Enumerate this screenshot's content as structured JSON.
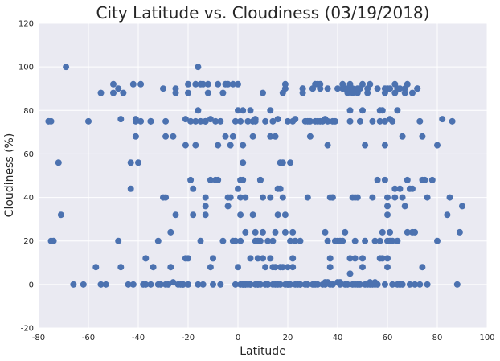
{
  "chart_data": {
    "type": "scatter",
    "title": "City Latitude vs. Cloudiness (03/19/2018)",
    "xlabel": "Latitude",
    "ylabel": "Cloudiness (%)",
    "xlim": [
      -80,
      100
    ],
    "ylim": [
      -20,
      120
    ],
    "xticks": [
      "-80",
      "-60",
      "-40",
      "-20",
      "0",
      "20",
      "40",
      "60",
      "80",
      "100"
    ],
    "yticks": [
      "-20",
      "0",
      "20",
      "40",
      "60",
      "80",
      "100",
      "120"
    ],
    "grid": true,
    "legend": "none",
    "colors": {
      "background": "#eaeaf2",
      "grid": "#ffffff",
      "point": "#4c72b0"
    },
    "points": [
      [
        -76,
        75
      ],
      [
        -75,
        75
      ],
      [
        -75,
        20
      ],
      [
        -74,
        20
      ],
      [
        -72,
        56
      ],
      [
        -71,
        32
      ],
      [
        -69,
        100
      ],
      [
        -66,
        0
      ],
      [
        -62,
        0
      ],
      [
        -60,
        75
      ],
      [
        -57,
        8
      ],
      [
        -55,
        0
      ],
      [
        -55,
        88
      ],
      [
        -53,
        0
      ],
      [
        -50,
        88
      ],
      [
        -50,
        92
      ],
      [
        -48,
        20
      ],
      [
        -48,
        90
      ],
      [
        -47,
        8
      ],
      [
        -47,
        76
      ],
      [
        -46,
        88
      ],
      [
        -44,
        0
      ],
      [
        -43,
        56
      ],
      [
        -43,
        44
      ],
      [
        -42,
        92
      ],
      [
        -42,
        0
      ],
      [
        -41,
        68
      ],
      [
        -41,
        75
      ],
      [
        -41,
        76
      ],
      [
        -40,
        56
      ],
      [
        -39,
        92
      ],
      [
        -39,
        75
      ],
      [
        -38,
        0
      ],
      [
        -37,
        12
      ],
      [
        -37,
        0
      ],
      [
        -35,
        75
      ],
      [
        -35,
        75
      ],
      [
        -35,
        0
      ],
      [
        -34,
        8
      ],
      [
        -32,
        20
      ],
      [
        -32,
        0
      ],
      [
        -31,
        0
      ],
      [
        -30,
        40
      ],
      [
        -30,
        90
      ],
      [
        -29,
        40
      ],
      [
        -29,
        0
      ],
      [
        -29,
        75
      ],
      [
        -29,
        68
      ],
      [
        -28,
        0
      ],
      [
        -27,
        8
      ],
      [
        -27,
        24
      ],
      [
        -26,
        1
      ],
      [
        -26,
        68
      ],
      [
        -25,
        90
      ],
      [
        -25,
        88
      ],
      [
        -25,
        32
      ],
      [
        -24,
        0
      ],
      [
        -23,
        0
      ],
      [
        -22,
        0
      ],
      [
        -22,
        0
      ],
      [
        -21,
        76
      ],
      [
        -21,
        64
      ],
      [
        -21,
        12
      ],
      [
        -20,
        0
      ],
      [
        -20,
        12
      ],
      [
        -20,
        88
      ],
      [
        -20,
        92
      ],
      [
        -19,
        48
      ],
      [
        -19,
        75
      ],
      [
        -18,
        44
      ],
      [
        -18,
        32
      ],
      [
        -17,
        64
      ],
      [
        -17,
        75
      ],
      [
        -17,
        92
      ],
      [
        -16,
        100
      ],
      [
        -16,
        80
      ],
      [
        -16,
        0
      ],
      [
        -15,
        75
      ],
      [
        -15,
        20
      ],
      [
        -15,
        92
      ],
      [
        -14,
        0
      ],
      [
        -14,
        92
      ],
      [
        -13,
        40
      ],
      [
        -13,
        36
      ],
      [
        -13,
        32
      ],
      [
        -13,
        75
      ],
      [
        -13,
        75
      ],
      [
        -12,
        88
      ],
      [
        -12,
        92
      ],
      [
        -11,
        8
      ],
      [
        -11,
        48
      ],
      [
        -11,
        76
      ],
      [
        -10,
        0
      ],
      [
        -10,
        12
      ],
      [
        -9,
        48
      ],
      [
        -9,
        75
      ],
      [
        -8,
        48
      ],
      [
        -8,
        92
      ],
      [
        -8,
        64
      ],
      [
        -7,
        0
      ],
      [
        -7,
        75
      ],
      [
        -6,
        20
      ],
      [
        -6,
        88
      ],
      [
        -5,
        92
      ],
      [
        -5,
        68
      ],
      [
        -4,
        36
      ],
      [
        -4,
        92
      ],
      [
        -4,
        40
      ],
      [
        -3,
        64
      ],
      [
        -3,
        40
      ],
      [
        -2,
        68
      ],
      [
        -2,
        92
      ],
      [
        -2,
        20
      ],
      [
        -1,
        0
      ],
      [
        -1,
        20
      ],
      [
        -1,
        75
      ],
      [
        0,
        92
      ],
      [
        0,
        80
      ],
      [
        0,
        8
      ],
      [
        0,
        44
      ],
      [
        1,
        40
      ],
      [
        1,
        48
      ],
      [
        1,
        32
      ],
      [
        1,
        75
      ],
      [
        1,
        0
      ],
      [
        1,
        20
      ],
      [
        2,
        80
      ],
      [
        2,
        48
      ],
      [
        2,
        64
      ],
      [
        2,
        56
      ],
      [
        2,
        0
      ],
      [
        2,
        0
      ],
      [
        3,
        24
      ],
      [
        3,
        0
      ],
      [
        3,
        40
      ],
      [
        3,
        0
      ],
      [
        4,
        75
      ],
      [
        4,
        0
      ],
      [
        5,
        80
      ],
      [
        5,
        0
      ],
      [
        5,
        12
      ],
      [
        5,
        0
      ],
      [
        6,
        75
      ],
      [
        6,
        68
      ],
      [
        6,
        32
      ],
      [
        7,
        20
      ],
      [
        7,
        24
      ],
      [
        7,
        76
      ],
      [
        7,
        0
      ],
      [
        7,
        75
      ],
      [
        8,
        20
      ],
      [
        8,
        12
      ],
      [
        8,
        0
      ],
      [
        8,
        0
      ],
      [
        9,
        48
      ],
      [
        9,
        20
      ],
      [
        9,
        0
      ],
      [
        9,
        48
      ],
      [
        10,
        88
      ],
      [
        10,
        40
      ],
      [
        10,
        24
      ],
      [
        10,
        12
      ],
      [
        11,
        75
      ],
      [
        11,
        0
      ],
      [
        11,
        8
      ],
      [
        12,
        20
      ],
      [
        12,
        0
      ],
      [
        12,
        0
      ],
      [
        13,
        68
      ],
      [
        13,
        40
      ],
      [
        13,
        80
      ],
      [
        13,
        12
      ],
      [
        14,
        20
      ],
      [
        14,
        75
      ],
      [
        14,
        8
      ],
      [
        14,
        0
      ],
      [
        15,
        68
      ],
      [
        15,
        24
      ],
      [
        15,
        8
      ],
      [
        15,
        0
      ],
      [
        16,
        0
      ],
      [
        16,
        76
      ],
      [
        16,
        44
      ],
      [
        16,
        32
      ],
      [
        17,
        44
      ],
      [
        17,
        8
      ],
      [
        17,
        56
      ],
      [
        17,
        0
      ],
      [
        18,
        8
      ],
      [
        18,
        56
      ],
      [
        18,
        88
      ],
      [
        18,
        40
      ],
      [
        19,
        90
      ],
      [
        19,
        92
      ],
      [
        19,
        0
      ],
      [
        19,
        24
      ],
      [
        19,
        32
      ],
      [
        20,
        0
      ],
      [
        20,
        75
      ],
      [
        20,
        8
      ],
      [
        20,
        0
      ],
      [
        21,
        20
      ],
      [
        21,
        56
      ],
      [
        21,
        0
      ],
      [
        22,
        12
      ],
      [
        22,
        8
      ],
      [
        22,
        75
      ],
      [
        22,
        24
      ],
      [
        23,
        76
      ],
      [
        23,
        0
      ],
      [
        23,
        20
      ],
      [
        24,
        0
      ],
      [
        25,
        0
      ],
      [
        25,
        20
      ],
      [
        25,
        0
      ],
      [
        26,
        88
      ],
      [
        26,
        90
      ],
      [
        26,
        90
      ],
      [
        27,
        0
      ],
      [
        27,
        75
      ],
      [
        28,
        75
      ],
      [
        28,
        40
      ],
      [
        28,
        0
      ],
      [
        29,
        68
      ],
      [
        29,
        75
      ],
      [
        30,
        0
      ],
      [
        30,
        90
      ],
      [
        30,
        90
      ],
      [
        31,
        0
      ],
      [
        31,
        75
      ],
      [
        31,
        92
      ],
      [
        32,
        0
      ],
      [
        32,
        92
      ],
      [
        32,
        75
      ],
      [
        33,
        90
      ],
      [
        33,
        75
      ],
      [
        33,
        92
      ],
      [
        34,
        0
      ],
      [
        34,
        75
      ],
      [
        35,
        0
      ],
      [
        35,
        76
      ],
      [
        35,
        24
      ],
      [
        35,
        1
      ],
      [
        36,
        75
      ],
      [
        36,
        64
      ],
      [
        36,
        90
      ],
      [
        36,
        1
      ],
      [
        36,
        20
      ],
      [
        37,
        40
      ],
      [
        37,
        12
      ],
      [
        37,
        8
      ],
      [
        37,
        0
      ],
      [
        38,
        40
      ],
      [
        38,
        75
      ],
      [
        38,
        40
      ],
      [
        38,
        0
      ],
      [
        39,
        20
      ],
      [
        39,
        75
      ],
      [
        40,
        20
      ],
      [
        40,
        1
      ],
      [
        40,
        90
      ],
      [
        41,
        1
      ],
      [
        41,
        0
      ],
      [
        41,
        20
      ],
      [
        42,
        90
      ],
      [
        42,
        92
      ],
      [
        42,
        20
      ],
      [
        43,
        90
      ],
      [
        43,
        0
      ],
      [
        43,
        24
      ],
      [
        44,
        90
      ],
      [
        44,
        88
      ],
      [
        44,
        0
      ],
      [
        45,
        92
      ],
      [
        45,
        5
      ],
      [
        45,
        75
      ],
      [
        45,
        80
      ],
      [
        45,
        12
      ],
      [
        46,
        40
      ],
      [
        46,
        90
      ],
      [
        46,
        88
      ],
      [
        46,
        0
      ],
      [
        47,
        12
      ],
      [
        47,
        20
      ],
      [
        47,
        40
      ],
      [
        47,
        0
      ],
      [
        48,
        88
      ],
      [
        48,
        40
      ],
      [
        48,
        90
      ],
      [
        48,
        0
      ],
      [
        49,
        90
      ],
      [
        49,
        75
      ],
      [
        49,
        0
      ],
      [
        50,
        80
      ],
      [
        50,
        92
      ],
      [
        50,
        12
      ],
      [
        50,
        8
      ],
      [
        51,
        64
      ],
      [
        51,
        0
      ],
      [
        51,
        20
      ],
      [
        52,
        88
      ],
      [
        52,
        90
      ],
      [
        52,
        0
      ],
      [
        53,
        1
      ],
      [
        53,
        92
      ],
      [
        53,
        0
      ],
      [
        54,
        75
      ],
      [
        54,
        40
      ],
      [
        54,
        0
      ],
      [
        55,
        0
      ],
      [
        55,
        1
      ],
      [
        55,
        20
      ],
      [
        56,
        0
      ],
      [
        56,
        48
      ],
      [
        56,
        90
      ],
      [
        57,
        80
      ],
      [
        57,
        75
      ],
      [
        57,
        12
      ],
      [
        57,
        20
      ],
      [
        58,
        24
      ],
      [
        58,
        80
      ],
      [
        58,
        12
      ],
      [
        59,
        48
      ],
      [
        59,
        64
      ],
      [
        59,
        0
      ],
      [
        59,
        75
      ],
      [
        59,
        90
      ],
      [
        59,
        88
      ],
      [
        60,
        32
      ],
      [
        60,
        40
      ],
      [
        60,
        8
      ],
      [
        60,
        36
      ],
      [
        60,
        12
      ],
      [
        60,
        90
      ],
      [
        60,
        20
      ],
      [
        61,
        24
      ],
      [
        61,
        76
      ],
      [
        61,
        20
      ],
      [
        61,
        90
      ],
      [
        62,
        75
      ],
      [
        62,
        0
      ],
      [
        62,
        20
      ],
      [
        63,
        44
      ],
      [
        63,
        92
      ],
      [
        63,
        40
      ],
      [
        63,
        88
      ],
      [
        64,
        90
      ],
      [
        64,
        80
      ],
      [
        64,
        20
      ],
      [
        64,
        0
      ],
      [
        65,
        44
      ],
      [
        65,
        0
      ],
      [
        65,
        90
      ],
      [
        65,
        0
      ],
      [
        66,
        0
      ],
      [
        66,
        68
      ],
      [
        66,
        40
      ],
      [
        67,
        36
      ],
      [
        67,
        90
      ],
      [
        67,
        88
      ],
      [
        68,
        92
      ],
      [
        68,
        48
      ],
      [
        68,
        24
      ],
      [
        69,
        0
      ],
      [
        69,
        44
      ],
      [
        70,
        24
      ],
      [
        70,
        88
      ],
      [
        70,
        44
      ],
      [
        71,
        0
      ],
      [
        71,
        24
      ],
      [
        72,
        90
      ],
      [
        72,
        90
      ],
      [
        73,
        0
      ],
      [
        73,
        75
      ],
      [
        74,
        68
      ],
      [
        74,
        48
      ],
      [
        74,
        8
      ],
      [
        75,
        48
      ],
      [
        76,
        0
      ],
      [
        76,
        40
      ],
      [
        78,
        48
      ],
      [
        80,
        64
      ],
      [
        80,
        20
      ],
      [
        82,
        76
      ],
      [
        84,
        32
      ],
      [
        85,
        40
      ],
      [
        86,
        75
      ],
      [
        88,
        0
      ],
      [
        89,
        24
      ],
      [
        90,
        36
      ]
    ]
  }
}
